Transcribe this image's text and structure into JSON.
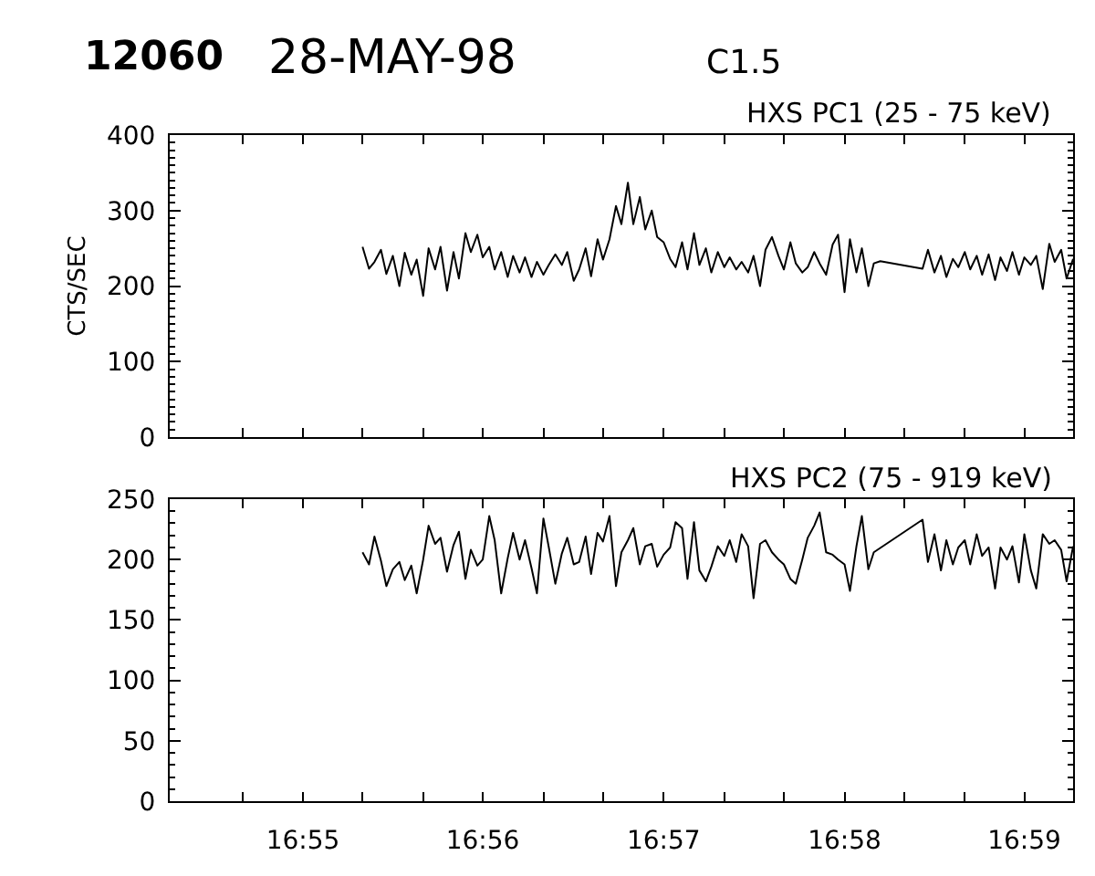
{
  "chart_data": [
    {
      "type": "line",
      "title": "12060",
      "subtitle": "28-MAY-98",
      "annotations": [
        "C1.5"
      ],
      "ylabel": "CTS/SEC",
      "tick_labels": "y",
      "x": [
        16.9222,
        16.9228,
        16.9233,
        16.9239,
        16.9244,
        16.925,
        16.9256,
        16.9261,
        16.9267,
        16.9272,
        16.9278,
        16.9283,
        16.9289,
        16.9294,
        16.93,
        16.9306,
        16.9311,
        16.9317,
        16.9322,
        16.9328,
        16.9333,
        16.9339,
        16.9344,
        16.935,
        16.9356,
        16.9361,
        16.9367,
        16.9372,
        16.9378,
        16.9383,
        16.9389,
        16.9394,
        16.94,
        16.9406,
        16.9411,
        16.9417,
        16.9422,
        16.9428,
        16.9433,
        16.9439,
        16.9444,
        16.945,
        16.9456,
        16.9461,
        16.9467,
        16.9472,
        16.9478,
        16.9483,
        16.9489,
        16.9494,
        16.95,
        16.9506,
        16.9511,
        16.9517,
        16.9522,
        16.9528,
        16.9533,
        16.9539,
        16.9544,
        16.955,
        16.9556,
        16.9561,
        16.9567,
        16.9572,
        16.9578,
        16.9583,
        16.9589,
        16.9594,
        16.96,
        16.9606,
        16.9611,
        16.9617,
        16.9622,
        16.9628,
        16.9633,
        16.9639,
        16.9644,
        16.965,
        16.9656,
        16.9661,
        16.9667,
        16.9672,
        16.9678,
        16.9683,
        16.9689,
        16.9694,
        16.97,
        16.9739,
        16.9744,
        16.975,
        16.9756,
        16.9761,
        16.9767,
        16.9772,
        16.9778,
        16.9783,
        16.9789,
        16.9794,
        16.98,
        16.9806,
        16.9811,
        16.9817,
        16.9822,
        16.9828,
        16.9833,
        16.9839,
        16.9844,
        16.985,
        16.9856,
        16.9861,
        16.9867,
        16.9872,
        16.9878
      ],
      "series": [
        {
          "name": "HXS PC1 (25 - 75 keV)",
          "color": "#000000",
          "values": [
            252,
            223,
            232,
            248,
            216,
            240,
            200,
            244,
            215,
            235,
            187,
            250,
            222,
            252,
            194,
            245,
            210,
            270,
            245,
            268,
            238,
            252,
            222,
            245,
            212,
            240,
            218,
            238,
            212,
            232,
            215,
            228,
            242,
            228,
            245,
            207,
            222,
            250,
            213,
            262,
            235,
            262,
            306,
            282,
            337,
            282,
            318,
            275,
            300,
            265,
            258,
            236,
            225,
            258,
            222,
            270,
            228,
            250,
            218,
            245,
            225,
            238,
            222,
            232,
            218,
            240,
            200,
            248,
            265,
            240,
            222,
            258,
            230,
            218,
            225,
            245,
            230,
            215,
            255,
            268,
            192,
            262,
            218,
            250,
            200,
            230,
            233,
            223,
            248,
            218,
            240,
            212,
            236,
            225,
            245,
            222,
            240,
            215,
            242,
            208,
            238,
            220,
            245,
            215,
            238,
            228,
            240,
            196,
            256,
            232,
            248,
            210,
            236
          ]
        }
      ],
      "xlim": [
        16.9044,
        16.9878
      ],
      "xticks": [
        {
          "value": 16.9111,
          "label": null
        },
        {
          "value": 16.9167,
          "label": null
        },
        {
          "value": 16.9222,
          "label": null
        },
        {
          "value": 16.9278,
          "label": null
        },
        {
          "value": 16.9333,
          "label": null
        },
        {
          "value": 16.9389,
          "label": null
        },
        {
          "value": 16.9444,
          "label": null
        },
        {
          "value": 16.95,
          "label": null
        },
        {
          "value": 16.9556,
          "label": null
        },
        {
          "value": 16.9611,
          "label": null
        },
        {
          "value": 16.9667,
          "label": null
        },
        {
          "value": 16.9722,
          "label": null
        },
        {
          "value": 16.9778,
          "label": null
        },
        {
          "value": 16.9833,
          "label": null
        }
      ],
      "ylim": [
        0,
        400
      ],
      "yticks": [
        0,
        {
          "value": 10,
          "label": null
        },
        {
          "value": 20,
          "label": null
        },
        {
          "value": 30,
          "label": null
        },
        {
          "value": 40,
          "label": null
        },
        {
          "value": 50,
          "label": null
        },
        {
          "value": 60,
          "label": null
        },
        {
          "value": 70,
          "label": null
        },
        {
          "value": 80,
          "label": null
        },
        {
          "value": 90,
          "label": null
        },
        100,
        {
          "value": 110,
          "label": null
        },
        {
          "value": 120,
          "label": null
        },
        {
          "value": 130,
          "label": null
        },
        {
          "value": 140,
          "label": null
        },
        {
          "value": 150,
          "label": null
        },
        {
          "value": 160,
          "label": null
        },
        {
          "value": 170,
          "label": null
        },
        {
          "value": 180,
          "label": null
        },
        {
          "value": 190,
          "label": null
        },
        200,
        {
          "value": 210,
          "label": null
        },
        {
          "value": 220,
          "label": null
        },
        {
          "value": 230,
          "label": null
        },
        {
          "value": 240,
          "label": null
        },
        {
          "value": 250,
          "label": null
        },
        {
          "value": 260,
          "label": null
        },
        {
          "value": 270,
          "label": null
        },
        {
          "value": 280,
          "label": null
        },
        {
          "value": 290,
          "label": null
        },
        300,
        {
          "value": 310,
          "label": null
        },
        {
          "value": 320,
          "label": null
        },
        {
          "value": 330,
          "label": null
        },
        {
          "value": 340,
          "label": null
        },
        {
          "value": 350,
          "label": null
        },
        {
          "value": 360,
          "label": null
        },
        {
          "value": 370,
          "label": null
        },
        {
          "value": 380,
          "label": null
        },
        {
          "value": 390,
          "label": null
        },
        400
      ]
    },
    {
      "type": "line",
      "x": [
        16.9222,
        16.9228,
        16.9233,
        16.9239,
        16.9244,
        16.925,
        16.9256,
        16.9261,
        16.9267,
        16.9272,
        16.9278,
        16.9283,
        16.9289,
        16.9294,
        16.93,
        16.9306,
        16.9311,
        16.9317,
        16.9322,
        16.9328,
        16.9333,
        16.9339,
        16.9344,
        16.935,
        16.9356,
        16.9361,
        16.9367,
        16.9372,
        16.9378,
        16.9383,
        16.9389,
        16.9394,
        16.94,
        16.9406,
        16.9411,
        16.9417,
        16.9422,
        16.9428,
        16.9433,
        16.9439,
        16.9444,
        16.945,
        16.9456,
        16.9461,
        16.9467,
        16.9472,
        16.9478,
        16.9483,
        16.9489,
        16.9494,
        16.95,
        16.9506,
        16.9511,
        16.9517,
        16.9522,
        16.9528,
        16.9533,
        16.9539,
        16.9544,
        16.955,
        16.9556,
        16.9561,
        16.9567,
        16.9572,
        16.9578,
        16.9583,
        16.9589,
        16.9594,
        16.96,
        16.9606,
        16.9611,
        16.9617,
        16.9622,
        16.9628,
        16.9633,
        16.9639,
        16.9644,
        16.965,
        16.9656,
        16.9661,
        16.9667,
        16.9672,
        16.9678,
        16.9683,
        16.9689,
        16.9694,
        16.9739,
        16.9744,
        16.975,
        16.9756,
        16.9761,
        16.9767,
        16.9772,
        16.9778,
        16.9783,
        16.9789,
        16.9794,
        16.98,
        16.9806,
        16.9811,
        16.9817,
        16.9822,
        16.9828,
        16.9833,
        16.9839,
        16.9844,
        16.985,
        16.9856,
        16.9861,
        16.9867,
        16.9872,
        16.9878
      ],
      "series": [
        {
          "name": "HXS PC2 (75 - 919 keV)",
          "color": "#000000",
          "values": [
            206,
            196,
            219,
            199,
            178,
            192,
            198,
            183,
            195,
            172,
            200,
            228,
            213,
            218,
            190,
            212,
            223,
            184,
            208,
            195,
            200,
            236,
            216,
            172,
            201,
            222,
            200,
            216,
            193,
            172,
            234,
            210,
            180,
            205,
            218,
            196,
            198,
            219,
            188,
            222,
            215,
            236,
            178,
            206,
            216,
            226,
            196,
            211,
            213,
            194,
            204,
            210,
            231,
            226,
            184,
            231,
            191,
            182,
            194,
            211,
            203,
            216,
            198,
            221,
            211,
            168,
            213,
            216,
            206,
            200,
            196,
            184,
            180,
            200,
            218,
            228,
            239,
            206,
            204,
            200,
            196,
            174,
            211,
            236,
            192,
            206,
            233,
            198,
            221,
            191,
            216,
            196,
            210,
            216,
            196,
            221,
            203,
            210,
            176,
            210,
            200,
            211,
            181,
            221,
            191,
            176,
            221,
            213,
            216,
            208,
            182,
            211
          ]
        }
      ],
      "xlim": [
        16.9044,
        16.9878
      ],
      "xticks": [
        {
          "value": 16.9111,
          "label": null
        },
        {
          "value": 16.9167,
          "label": "16:55"
        },
        {
          "value": 16.9222,
          "label": null
        },
        {
          "value": 16.9278,
          "label": null
        },
        {
          "value": 16.9333,
          "label": "16:56"
        },
        {
          "value": 16.9389,
          "label": null
        },
        {
          "value": 16.9444,
          "label": null
        },
        {
          "value": 16.95,
          "label": "16:57"
        },
        {
          "value": 16.9556,
          "label": null
        },
        {
          "value": 16.9611,
          "label": null
        },
        {
          "value": 16.9667,
          "label": "16:58"
        },
        {
          "value": 16.9722,
          "label": null
        },
        {
          "value": 16.9778,
          "label": null
        },
        {
          "value": 16.9833,
          "label": "16:59"
        }
      ],
      "ylim": [
        0,
        250
      ],
      "yticks": [
        0,
        {
          "value": 10,
          "label": null
        },
        {
          "value": 20,
          "label": null
        },
        {
          "value": 30,
          "label": null
        },
        {
          "value": 40,
          "label": null
        },
        50,
        {
          "value": 60,
          "label": null
        },
        {
          "value": 70,
          "label": null
        },
        {
          "value": 80,
          "label": null
        },
        {
          "value": 90,
          "label": null
        },
        100,
        {
          "value": 110,
          "label": null
        },
        {
          "value": 120,
          "label": null
        },
        {
          "value": 130,
          "label": null
        },
        {
          "value": 140,
          "label": null
        },
        150,
        {
          "value": 160,
          "label": null
        },
        {
          "value": 170,
          "label": null
        },
        {
          "value": 180,
          "label": null
        },
        {
          "value": 190,
          "label": null
        },
        200,
        {
          "value": 210,
          "label": null
        },
        {
          "value": 220,
          "label": null
        },
        {
          "value": 230,
          "label": null
        },
        {
          "value": 240,
          "label": null
        },
        250
      ]
    }
  ]
}
